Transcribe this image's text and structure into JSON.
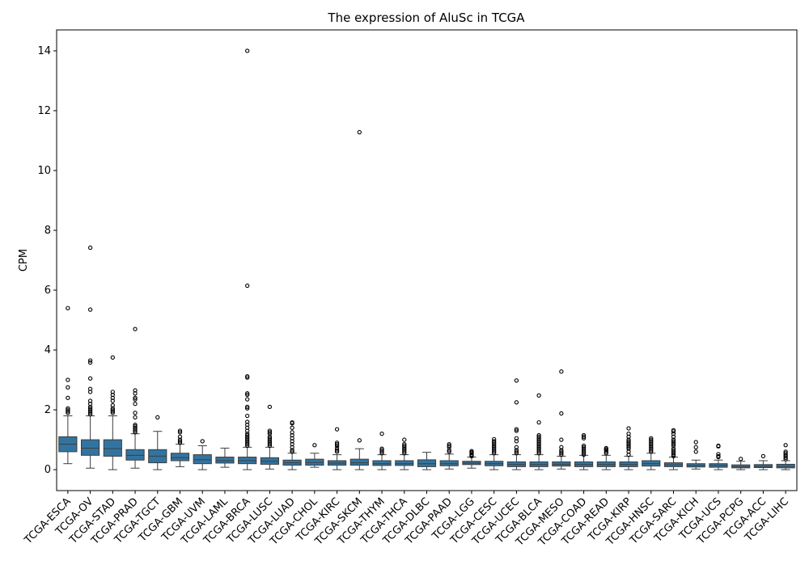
{
  "chart_data": {
    "type": "box",
    "title": "The expression of AluSc in TCGA",
    "xlabel": "",
    "ylabel": "CPM",
    "ylim": [
      -0.7,
      14.7
    ],
    "yticks": [
      0,
      2,
      4,
      6,
      8,
      10,
      12,
      14
    ],
    "grid": false,
    "box_color": "#3274a1",
    "categories": [
      "TCGA-ESCA",
      "TCGA-OV",
      "TCGA-STAD",
      "TCGA-PRAD",
      "TCGA-TGCT",
      "TCGA-GBM",
      "TCGA-UVM",
      "TCGA-LAML",
      "TCGA-BRCA",
      "TCGA-LUSC",
      "TCGA-LUAD",
      "TCGA-CHOL",
      "TCGA-KIRC",
      "TCGA-SKCM",
      "TCGA-THYM",
      "TCGA-THCA",
      "TCGA-DLBC",
      "TCGA-PAAD",
      "TCGA-LGG",
      "TCGA-CESC",
      "TCGA-UCEC",
      "TCGA-BLCA",
      "TCGA-MESO",
      "TCGA-COAD",
      "TCGA-READ",
      "TCGA-KIRP",
      "TCGA-HNSC",
      "TCGA-SARC",
      "TCGA-KICH",
      "TCGA-UCS",
      "TCGA-PCPG",
      "TCGA-ACC",
      "TCGA-LIHC"
    ],
    "boxes": [
      {
        "whisker_low": 0.2,
        "q1": 0.6,
        "median": 0.85,
        "q3": 1.1,
        "whisker_high": 1.8,
        "outliers": [
          5.4,
          3.0,
          2.75,
          2.4,
          2.05,
          2.0,
          1.95,
          1.9
        ]
      },
      {
        "whisker_low": 0.05,
        "q1": 0.48,
        "median": 0.72,
        "q3": 1.0,
        "whisker_high": 1.8,
        "outliers": [
          7.42,
          5.35,
          3.65,
          3.58,
          3.05,
          2.7,
          2.6,
          2.3,
          2.2,
          2.1,
          2.05,
          2.0,
          1.95,
          1.9,
          1.85
        ]
      },
      {
        "whisker_low": 0.0,
        "q1": 0.45,
        "median": 0.7,
        "q3": 1.0,
        "whisker_high": 1.8,
        "outliers": [
          3.75,
          2.6,
          2.5,
          2.4,
          2.3,
          2.15,
          2.05,
          2.0,
          1.95,
          1.9
        ]
      },
      {
        "whisker_low": 0.05,
        "q1": 0.32,
        "median": 0.48,
        "q3": 0.67,
        "whisker_high": 1.2,
        "outliers": [
          4.7,
          2.65,
          2.55,
          2.4,
          2.35,
          2.2,
          1.9,
          1.75,
          1.5,
          1.45,
          1.4,
          1.35,
          1.3,
          1.25
        ]
      },
      {
        "whisker_low": 0.0,
        "q1": 0.23,
        "median": 0.45,
        "q3": 0.67,
        "whisker_high": 1.28,
        "outliers": [
          1.75
        ]
      },
      {
        "whisker_low": 0.1,
        "q1": 0.3,
        "median": 0.4,
        "q3": 0.55,
        "whisker_high": 0.85,
        "outliers": [
          1.3,
          1.25,
          1.1,
          1.0,
          0.95,
          0.9
        ]
      },
      {
        "whisker_low": 0.0,
        "q1": 0.2,
        "median": 0.33,
        "q3": 0.5,
        "whisker_high": 0.8,
        "outliers": [
          0.95
        ]
      },
      {
        "whisker_low": 0.08,
        "q1": 0.22,
        "median": 0.3,
        "q3": 0.42,
        "whisker_high": 0.72,
        "outliers": []
      },
      {
        "whisker_low": 0.0,
        "q1": 0.2,
        "median": 0.3,
        "q3": 0.42,
        "whisker_high": 0.75,
        "outliers": [
          14.0,
          6.15,
          3.12,
          3.08,
          2.55,
          2.5,
          2.35,
          2.1,
          2.05,
          1.8,
          1.6,
          1.5,
          1.4,
          1.3,
          1.2,
          1.15,
          1.1,
          1.05,
          1.0,
          0.95,
          0.9,
          0.85,
          0.8
        ]
      },
      {
        "whisker_low": 0.02,
        "q1": 0.18,
        "median": 0.28,
        "q3": 0.4,
        "whisker_high": 0.75,
        "outliers": [
          2.1,
          1.3,
          1.25,
          1.2,
          1.1,
          1.05,
          1.0,
          0.95,
          0.9,
          0.85,
          0.8
        ]
      },
      {
        "whisker_low": 0.0,
        "q1": 0.15,
        "median": 0.23,
        "q3": 0.32,
        "whisker_high": 0.55,
        "outliers": [
          1.58,
          1.55,
          1.4,
          1.25,
          1.15,
          1.05,
          0.95,
          0.85,
          0.75,
          0.65,
          0.6
        ]
      },
      {
        "whisker_low": 0.08,
        "q1": 0.15,
        "median": 0.24,
        "q3": 0.35,
        "whisker_high": 0.55,
        "outliers": [
          0.82
        ]
      },
      {
        "whisker_low": 0.0,
        "q1": 0.15,
        "median": 0.22,
        "q3": 0.3,
        "whisker_high": 0.5,
        "outliers": [
          1.35,
          0.9,
          0.85,
          0.8,
          0.72,
          0.65,
          0.6
        ]
      },
      {
        "whisker_low": 0.0,
        "q1": 0.15,
        "median": 0.23,
        "q3": 0.35,
        "whisker_high": 0.7,
        "outliers": [
          11.28,
          0.98
        ]
      },
      {
        "whisker_low": 0.0,
        "q1": 0.14,
        "median": 0.2,
        "q3": 0.3,
        "whisker_high": 0.5,
        "outliers": [
          1.2,
          0.7,
          0.65,
          0.6,
          0.55
        ]
      },
      {
        "whisker_low": 0.0,
        "q1": 0.14,
        "median": 0.2,
        "q3": 0.3,
        "whisker_high": 0.5,
        "outliers": [
          1.0,
          0.85,
          0.8,
          0.75,
          0.7,
          0.65,
          0.6,
          0.55
        ]
      },
      {
        "whisker_low": 0.0,
        "q1": 0.1,
        "median": 0.2,
        "q3": 0.33,
        "whisker_high": 0.58,
        "outliers": []
      },
      {
        "whisker_low": 0.02,
        "q1": 0.13,
        "median": 0.2,
        "q3": 0.3,
        "whisker_high": 0.52,
        "outliers": [
          0.85,
          0.8,
          0.75,
          0.65,
          0.6
        ]
      },
      {
        "whisker_low": 0.05,
        "q1": 0.17,
        "median": 0.22,
        "q3": 0.28,
        "whisker_high": 0.42,
        "outliers": [
          0.62,
          0.58,
          0.55,
          0.5,
          0.48,
          0.45
        ]
      },
      {
        "whisker_low": 0.0,
        "q1": 0.13,
        "median": 0.2,
        "q3": 0.28,
        "whisker_high": 0.5,
        "outliers": [
          1.02,
          0.95,
          0.9,
          0.85,
          0.8,
          0.75,
          0.7,
          0.65,
          0.6,
          0.55
        ]
      },
      {
        "whisker_low": 0.0,
        "q1": 0.1,
        "median": 0.17,
        "q3": 0.26,
        "whisker_high": 0.5,
        "outliers": [
          2.98,
          2.25,
          1.35,
          1.3,
          1.05,
          0.95,
          0.75,
          0.65,
          0.6,
          0.55
        ]
      },
      {
        "whisker_low": 0.0,
        "q1": 0.1,
        "median": 0.17,
        "q3": 0.26,
        "whisker_high": 0.5,
        "outliers": [
          2.48,
          1.58,
          1.15,
          1.1,
          1.05,
          1.0,
          0.95,
          0.9,
          0.85,
          0.8,
          0.75,
          0.7,
          0.65,
          0.6,
          0.55
        ]
      },
      {
        "whisker_low": 0.02,
        "q1": 0.12,
        "median": 0.18,
        "q3": 0.26,
        "whisker_high": 0.45,
        "outliers": [
          3.28,
          1.88,
          1.0,
          0.75,
          0.65,
          0.6,
          0.55,
          0.5
        ]
      },
      {
        "whisker_low": 0.0,
        "q1": 0.1,
        "median": 0.17,
        "q3": 0.26,
        "whisker_high": 0.48,
        "outliers": [
          1.15,
          1.1,
          1.05,
          0.8,
          0.75,
          0.7,
          0.65,
          0.6,
          0.55,
          0.5
        ]
      },
      {
        "whisker_low": 0.0,
        "q1": 0.1,
        "median": 0.17,
        "q3": 0.26,
        "whisker_high": 0.48,
        "outliers": [
          0.72,
          0.68,
          0.65,
          0.6,
          0.55
        ]
      },
      {
        "whisker_low": 0.0,
        "q1": 0.1,
        "median": 0.17,
        "q3": 0.26,
        "whisker_high": 0.45,
        "outliers": [
          1.38,
          1.2,
          1.1,
          1.0,
          0.95,
          0.9,
          0.85,
          0.8,
          0.75,
          0.7,
          0.6,
          0.5
        ]
      },
      {
        "whisker_low": 0.0,
        "q1": 0.12,
        "median": 0.2,
        "q3": 0.3,
        "whisker_high": 0.55,
        "outliers": [
          1.05,
          1.0,
          0.95,
          0.9,
          0.85,
          0.8,
          0.75,
          0.7,
          0.65,
          0.6
        ]
      },
      {
        "whisker_low": 0.0,
        "q1": 0.1,
        "median": 0.16,
        "q3": 0.23,
        "whisker_high": 0.42,
        "outliers": [
          1.32,
          1.28,
          1.2,
          1.1,
          1.0,
          0.95,
          0.9,
          0.85,
          0.8,
          0.7,
          0.65,
          0.6,
          0.55,
          0.5,
          0.45
        ]
      },
      {
        "whisker_low": 0.02,
        "q1": 0.09,
        "median": 0.14,
        "q3": 0.2,
        "whisker_high": 0.32,
        "outliers": [
          0.92,
          0.75,
          0.6
        ]
      },
      {
        "whisker_low": 0.0,
        "q1": 0.08,
        "median": 0.14,
        "q3": 0.2,
        "whisker_high": 0.32,
        "outliers": [
          0.8,
          0.78,
          0.52,
          0.45,
          0.42
        ]
      },
      {
        "whisker_low": 0.0,
        "q1": 0.06,
        "median": 0.1,
        "q3": 0.16,
        "whisker_high": 0.28,
        "outliers": [
          0.36
        ]
      },
      {
        "whisker_low": 0.0,
        "q1": 0.07,
        "median": 0.11,
        "q3": 0.17,
        "whisker_high": 0.3,
        "outliers": [
          0.45
        ]
      },
      {
        "whisker_low": 0.0,
        "q1": 0.06,
        "median": 0.11,
        "q3": 0.18,
        "whisker_high": 0.3,
        "outliers": [
          0.82,
          0.6,
          0.55,
          0.5,
          0.45,
          0.4,
          0.35
        ]
      }
    ]
  }
}
